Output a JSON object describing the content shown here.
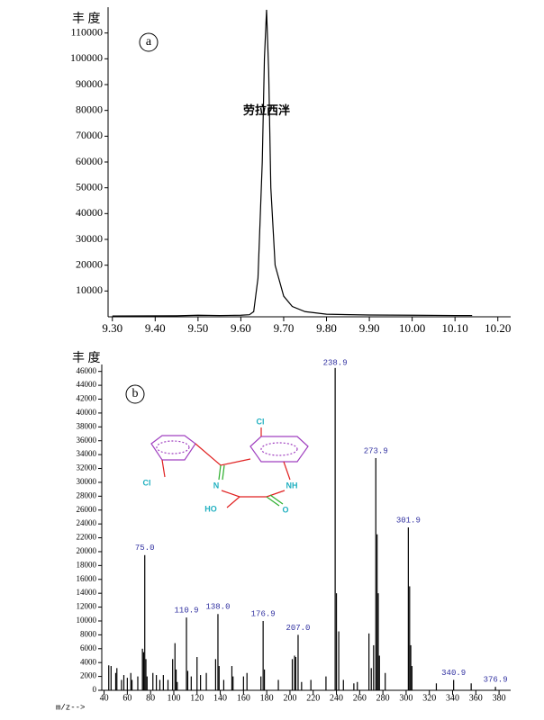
{
  "chart_data": [
    {
      "type": "line",
      "panel": "a",
      "y_label": "丰 度",
      "annotation": "劳拉西泮",
      "color": "#000000",
      "x": [
        9.3,
        9.45,
        9.5,
        9.55,
        9.6,
        9.62,
        9.63,
        9.64,
        9.65,
        9.655,
        9.66,
        9.665,
        9.67,
        9.68,
        9.7,
        9.72,
        9.75,
        9.8,
        9.9,
        10.0,
        10.1,
        10.14
      ],
      "values": [
        300,
        400,
        600,
        500,
        600,
        800,
        2000,
        15000,
        60000,
        100000,
        119000,
        95000,
        50000,
        20000,
        8000,
        4000,
        2000,
        1000,
        700,
        600,
        500,
        500
      ],
      "xlim": [
        9.29,
        10.23
      ],
      "ylim": [
        0,
        120000
      ],
      "xticks": [
        {
          "value": 9.3,
          "label": "9.30"
        },
        {
          "value": 9.4,
          "label": "9.40"
        },
        {
          "value": 9.5,
          "label": "9.50"
        },
        {
          "value": 9.6,
          "label": "9.60"
        },
        {
          "value": 9.7,
          "label": "9.70"
        },
        {
          "value": 9.8,
          "label": "9.80"
        },
        {
          "value": 9.9,
          "label": "9.90"
        },
        {
          "value": 10,
          "label": "10.00"
        },
        {
          "value": 10.1,
          "label": "10.10"
        },
        {
          "value": 10.2,
          "label": "10.20"
        }
      ],
      "yticks": [
        10000,
        20000,
        30000,
        40000,
        50000,
        60000,
        70000,
        80000,
        90000,
        100000,
        110000
      ]
    },
    {
      "type": "bar",
      "panel": "b",
      "y_label": "丰 度",
      "x_label": "m/z-->",
      "color": "#000000",
      "structure_labels": [
        "Cl",
        "Cl",
        "N",
        "NH",
        "HO",
        "O"
      ],
      "x": [
        44,
        46,
        50,
        51,
        55,
        57,
        60,
        63,
        64,
        69,
        73,
        74,
        75,
        76,
        77,
        82,
        85,
        88,
        91,
        95,
        99,
        101,
        102,
        103,
        110.9,
        112,
        115,
        120,
        123,
        128,
        136,
        138,
        139,
        143,
        150,
        151,
        160,
        163,
        175,
        176.9,
        178,
        190,
        202,
        204,
        205,
        207,
        210,
        218,
        231,
        238.9,
        240,
        242,
        246,
        255,
        258,
        268,
        270,
        272,
        273.9,
        275,
        276,
        277,
        282,
        301.9,
        303,
        304,
        305,
        326,
        340.9,
        356,
        376.9
      ],
      "values": [
        3600,
        3500,
        2500,
        3200,
        1500,
        2200,
        1800,
        2500,
        1500,
        2000,
        6000,
        5500,
        19500,
        4500,
        2000,
        2500,
        2200,
        1500,
        2200,
        1500,
        4500,
        6800,
        3000,
        1200,
        10500,
        2800,
        2000,
        4800,
        2200,
        2500,
        4500,
        11000,
        3500,
        1500,
        3500,
        2000,
        2000,
        2500,
        2000,
        10000,
        3000,
        1500,
        4500,
        5000,
        4800,
        8000,
        1200,
        1500,
        2000,
        46500,
        14000,
        8500,
        1500,
        1000,
        1200,
        8200,
        3200,
        6500,
        33500,
        22500,
        14000,
        5000,
        2500,
        23500,
        15000,
        6500,
        3500,
        1000,
        1500,
        1000,
        500
      ],
      "annotations": [
        {
          "value": 75.0,
          "label": "75.0"
        },
        {
          "value": 110.9,
          "label": "110.9"
        },
        {
          "value": 138.0,
          "label": "138.0"
        },
        {
          "value": 176.9,
          "label": "176.9"
        },
        {
          "value": 207.0,
          "label": "207.0"
        },
        {
          "value": 238.9,
          "label": "238.9"
        },
        {
          "value": 273.9,
          "label": "273.9"
        },
        {
          "value": 301.9,
          "label": "301.9"
        },
        {
          "value": 340.9,
          "label": "340.9"
        },
        {
          "value": 376.9,
          "label": "376.9"
        }
      ],
      "xlim": [
        38,
        390
      ],
      "ylim": [
        0,
        47000
      ],
      "xticks": [
        40,
        60,
        80,
        100,
        120,
        140,
        160,
        180,
        200,
        220,
        240,
        260,
        280,
        300,
        320,
        340,
        360,
        380
      ],
      "yticks": [
        0,
        2000,
        4000,
        6000,
        8000,
        10000,
        12000,
        14000,
        16000,
        18000,
        20000,
        22000,
        24000,
        26000,
        28000,
        30000,
        32000,
        34000,
        36000,
        38000,
        40000,
        42000,
        44000,
        46000
      ]
    }
  ]
}
